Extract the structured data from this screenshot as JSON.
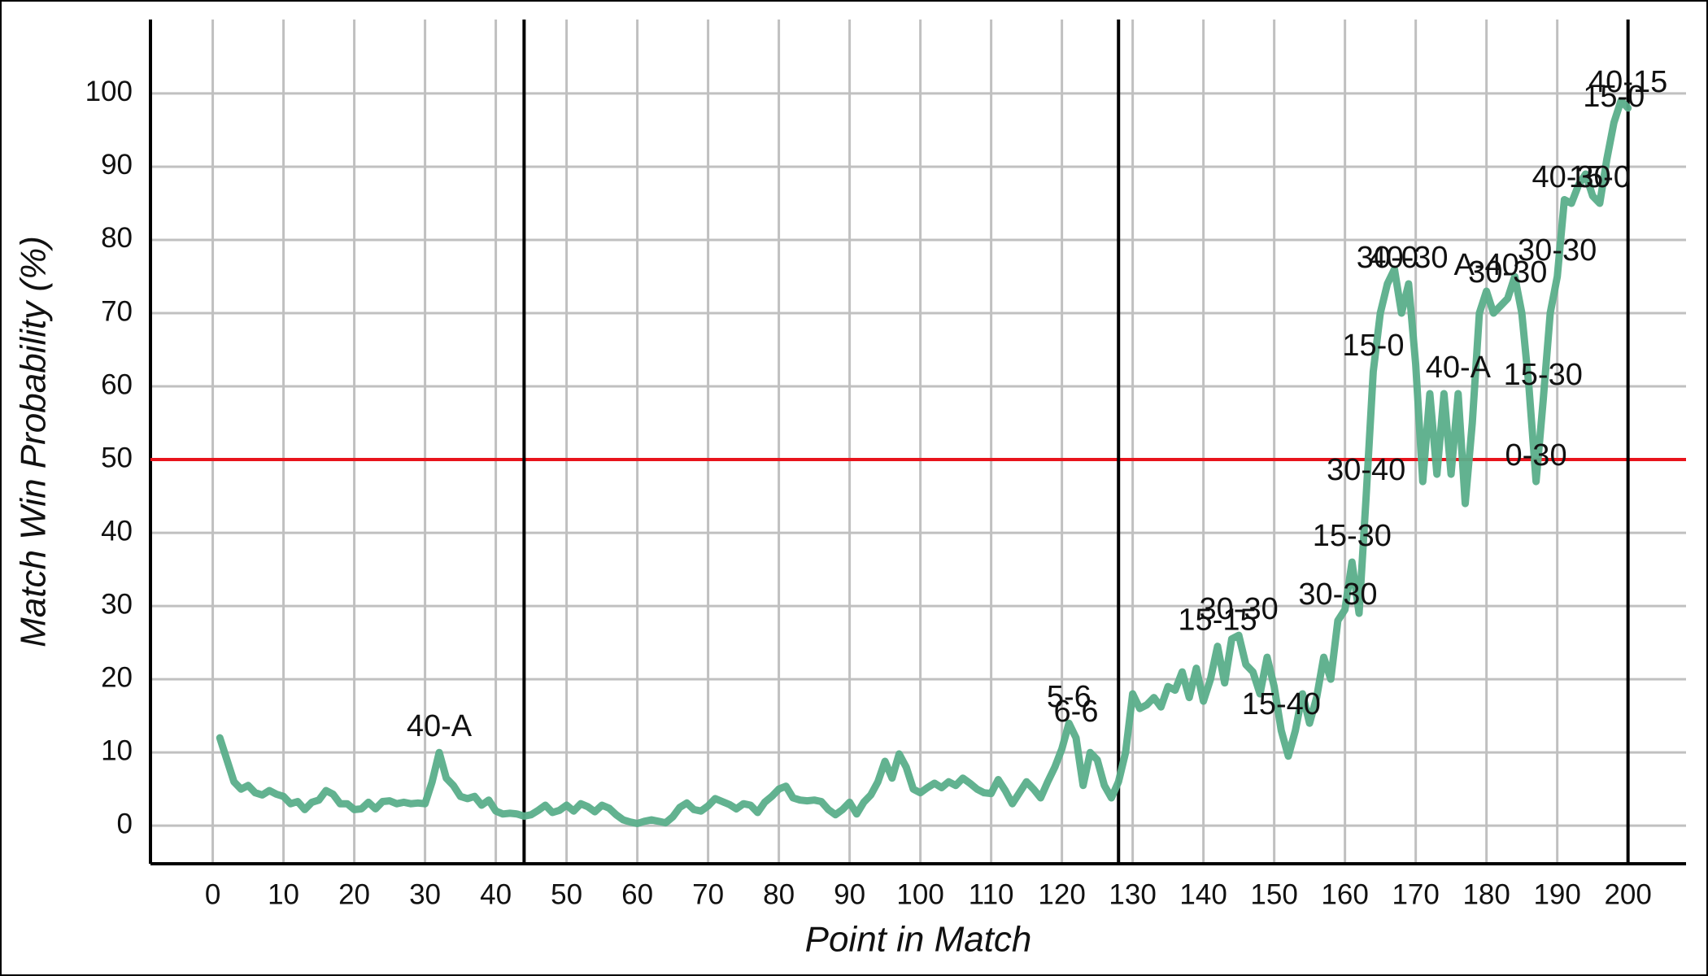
{
  "chart_data": {
    "type": "line",
    "x_label": "Point in Match",
    "y_label": "Match Win Probability (%)",
    "x": [
      1,
      2,
      3,
      4,
      5,
      6,
      7,
      8,
      9,
      10,
      11,
      12,
      13,
      14,
      15,
      16,
      17,
      18,
      19,
      20,
      21,
      22,
      23,
      24,
      25,
      26,
      27,
      28,
      29,
      30,
      31,
      32,
      33,
      34,
      35,
      36,
      37,
      38,
      39,
      40,
      41,
      42,
      43,
      44,
      45,
      46,
      47,
      48,
      49,
      50,
      51,
      52,
      53,
      54,
      55,
      56,
      57,
      58,
      59,
      60,
      61,
      62,
      63,
      64,
      65,
      66,
      67,
      68,
      69,
      70,
      71,
      72,
      73,
      74,
      75,
      76,
      77,
      78,
      79,
      80,
      81,
      82,
      83,
      84,
      85,
      86,
      87,
      88,
      89,
      90,
      91,
      92,
      93,
      94,
      95,
      96,
      97,
      98,
      99,
      100,
      101,
      102,
      103,
      104,
      105,
      106,
      107,
      108,
      109,
      110,
      111,
      112,
      113,
      114,
      115,
      116,
      117,
      118,
      119,
      120,
      121,
      122,
      123,
      124,
      125,
      126,
      127,
      128,
      129,
      130,
      131,
      132,
      133,
      134,
      135,
      136,
      137,
      138,
      139,
      140,
      141,
      142,
      143,
      144,
      145,
      146,
      147,
      148,
      149,
      150,
      151,
      152,
      153,
      154,
      155,
      156,
      157,
      158,
      159,
      160,
      161,
      162,
      163,
      164,
      165,
      166,
      167,
      168,
      169,
      170,
      171,
      172,
      173,
      174,
      175,
      176,
      177,
      178,
      179,
      180,
      181,
      182,
      183,
      184,
      185,
      186,
      187,
      188,
      189,
      190,
      191,
      192,
      193,
      194,
      195,
      196,
      197,
      198,
      199,
      200
    ],
    "series": [
      {
        "color": "#5aae8a",
        "values": [
          12,
          9,
          6,
          5,
          5.5,
          4.5,
          4.2,
          4.8,
          4.3,
          4,
          3,
          3.3,
          2.2,
          3.2,
          3.5,
          4.8,
          4.3,
          3,
          3,
          2.2,
          2.3,
          3.2,
          2.3,
          3.3,
          3.4,
          3,
          3.2,
          3,
          3.1,
          3,
          6,
          10,
          6.5,
          5.5,
          4,
          3.7,
          4,
          2.8,
          3.5,
          2,
          1.6,
          1.7,
          1.6,
          1.3,
          1.5,
          2.1,
          2.8,
          1.8,
          2.1,
          2.8,
          2,
          3,
          2.6,
          1.9,
          2.8,
          2.4,
          1.5,
          0.8,
          0.5,
          0.3,
          0.6,
          0.8,
          0.6,
          0.4,
          1.2,
          2.5,
          3.1,
          2.2,
          2,
          2.7,
          3.7,
          3.3,
          2.9,
          2.3,
          3,
          2.8,
          1.8,
          3.2,
          4,
          5,
          5.4,
          3.8,
          3.5,
          3.4,
          3.5,
          3.3,
          2.2,
          1.5,
          2.2,
          3.2,
          1.6,
          3.2,
          4.2,
          6,
          8.8,
          6.5,
          9.8,
          8,
          5,
          4.5,
          5.2,
          5.8,
          5.2,
          6,
          5.5,
          6.5,
          5.8,
          5,
          4.5,
          4.4,
          6.3,
          4.8,
          3,
          4.5,
          6,
          5,
          3.8,
          6,
          8,
          10.5,
          14,
          12,
          5.5,
          10,
          9,
          5.5,
          3.8,
          6,
          10,
          18,
          16,
          16.5,
          17.5,
          16.2,
          19,
          18.5,
          21,
          17.5,
          21.5,
          17,
          20,
          24.5,
          19.5,
          25.5,
          26,
          22,
          21,
          18,
          23,
          19,
          13,
          9.5,
          13,
          18,
          14,
          17.5,
          23,
          20,
          28,
          29.5,
          36,
          29,
          45,
          62,
          70,
          74,
          76,
          70,
          74,
          63,
          47,
          59,
          48,
          59,
          48,
          59,
          44,
          55,
          70,
          73,
          70,
          71,
          72,
          75,
          70,
          60,
          47,
          58,
          70,
          75,
          85.5,
          85,
          87.5,
          89,
          86,
          85,
          91,
          96,
          99,
          98
        ]
      }
    ],
    "annotations": [
      {
        "x": 32,
        "text": "40-A"
      },
      {
        "x": 121,
        "text": "5-6"
      },
      {
        "x": 122,
        "text": "6-6"
      },
      {
        "x": 142,
        "text": "15-15"
      },
      {
        "x": 145,
        "text": "30-30"
      },
      {
        "x": 151,
        "text": "15-40"
      },
      {
        "x": 159,
        "text": "30-30"
      },
      {
        "x": 161,
        "text": "15-30"
      },
      {
        "x": 163,
        "text": "30-40"
      },
      {
        "x": 164,
        "text": "15-0"
      },
      {
        "x": 166,
        "text": "30-0"
      },
      {
        "x": 169,
        "text": "40-30"
      },
      {
        "x": 176,
        "text": "40-A"
      },
      {
        "x": 180,
        "text": "A-40"
      },
      {
        "x": 183,
        "text": "30-30"
      },
      {
        "x": 187,
        "text": "0-30"
      },
      {
        "x": 188,
        "text": "15-30"
      },
      {
        "x": 190,
        "text": "30-30"
      },
      {
        "x": 192,
        "text": "40-30"
      },
      {
        "x": 196,
        "text": "15-0"
      },
      {
        "x": 198,
        "text": "15-0"
      },
      {
        "x": 200,
        "text": "40-15"
      }
    ],
    "vlines": [
      44,
      128,
      200
    ],
    "vline_color": "#000000",
    "hline": 50,
    "hline_color": "#e8141c",
    "xlim": [
      -8.8,
      208.2
    ],
    "ylim": [
      -5.2,
      110.1
    ],
    "xticks": [
      0,
      10,
      20,
      30,
      40,
      50,
      60,
      70,
      80,
      90,
      100,
      110,
      120,
      130,
      140,
      150,
      160,
      170,
      180,
      190,
      200
    ],
    "yticks": [
      0,
      10,
      20,
      30,
      40,
      50,
      60,
      70,
      80,
      90,
      100
    ],
    "grid": true,
    "grid_color": "#c0c0c0"
  }
}
